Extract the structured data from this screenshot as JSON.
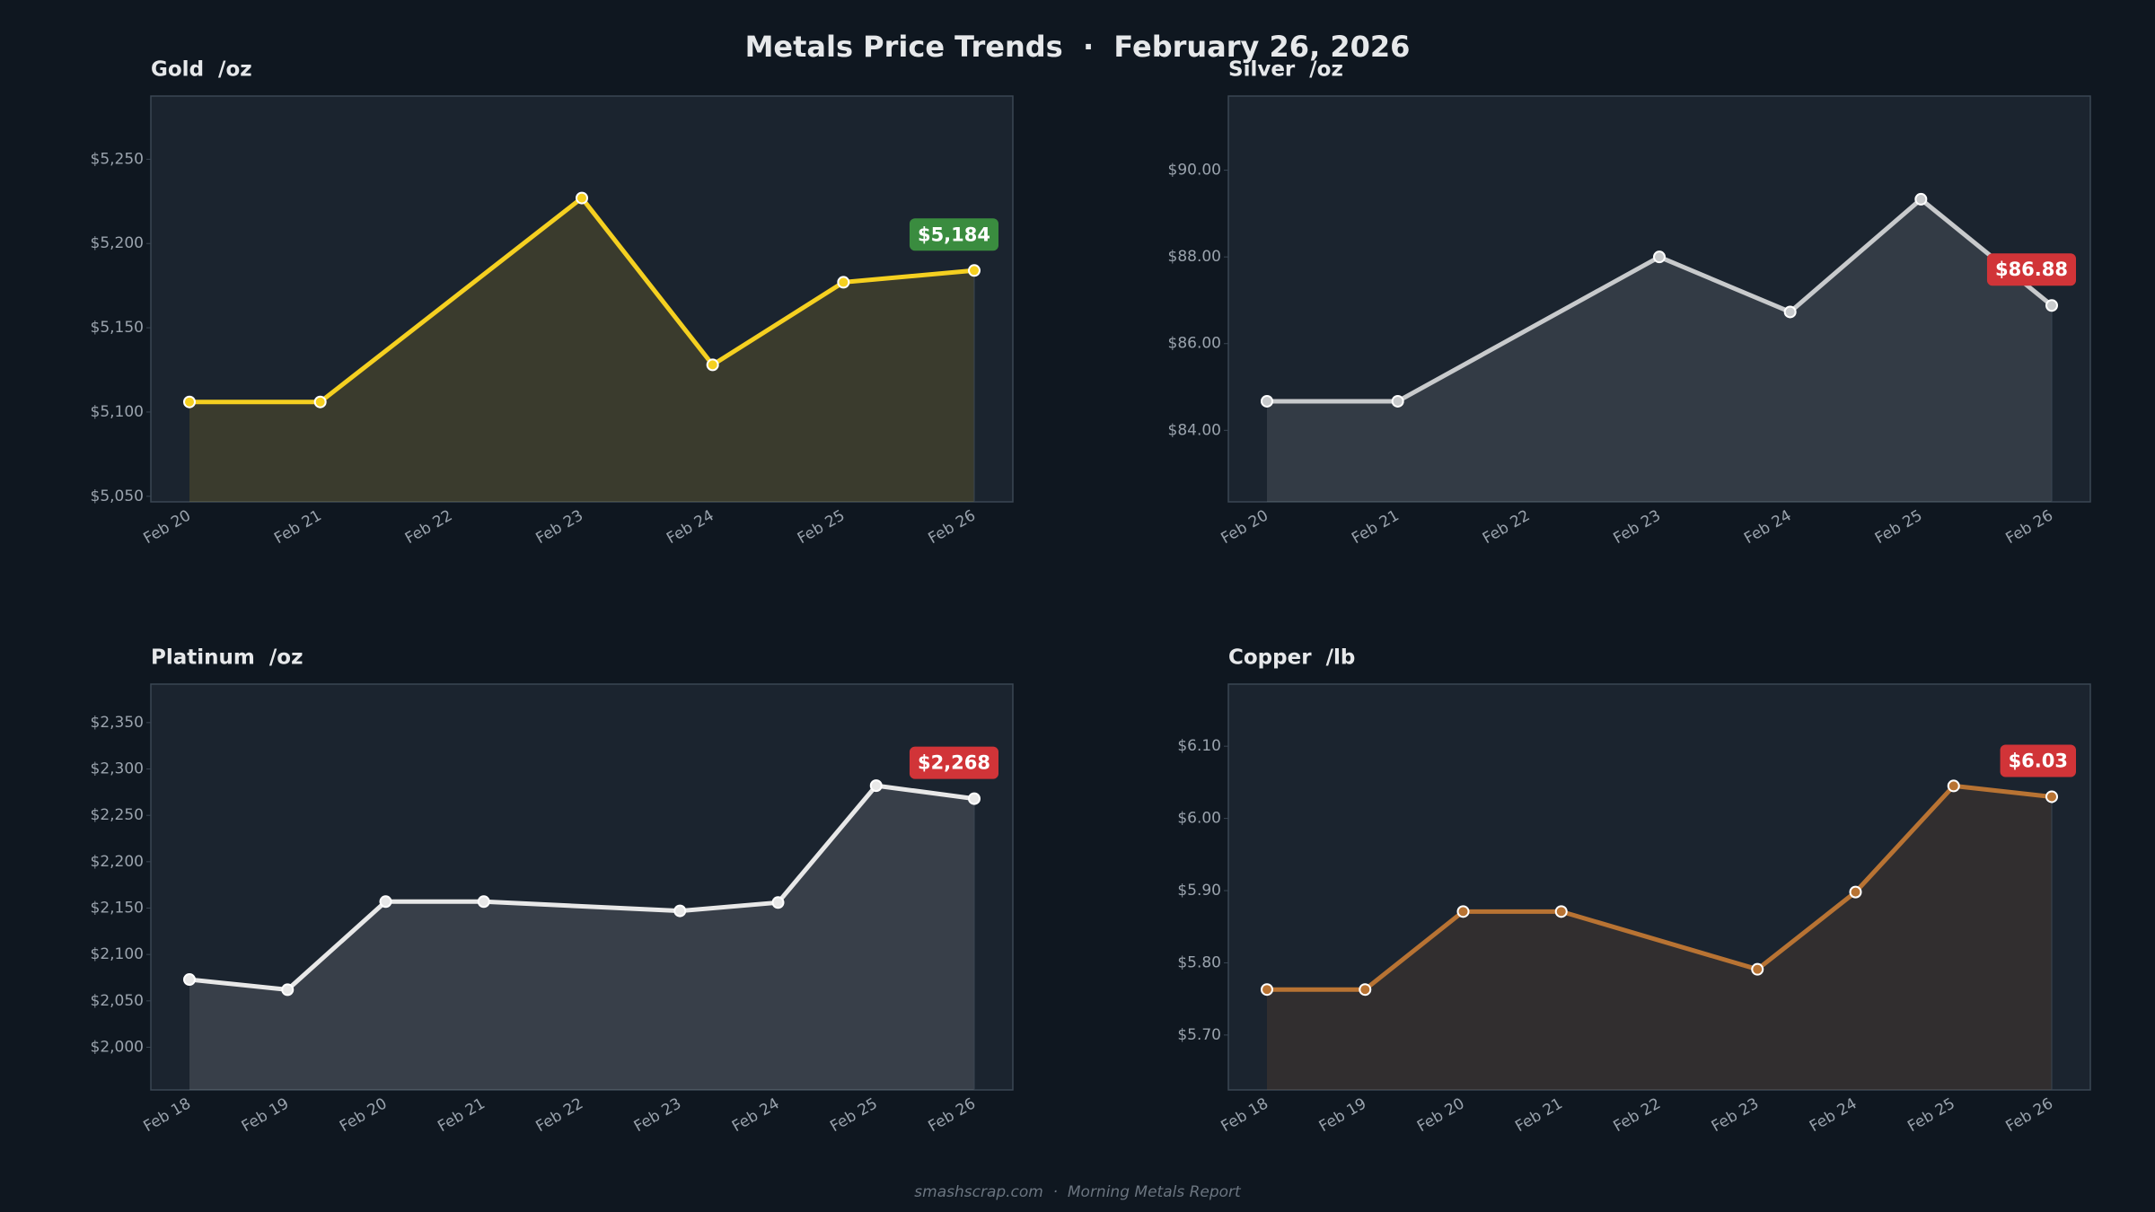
{
  "title": "Metals Price Trends  ·  February 26, 2026",
  "footer": "smashscrap.com  ·  Morning Metals Report",
  "chart_data": [
    {
      "type": "line",
      "title": "Gold  /oz",
      "xticks": [
        "Feb 20",
        "Feb 21",
        "Feb 22",
        "Feb 23",
        "Feb 24",
        "Feb 25",
        "Feb 26"
      ],
      "x": [
        "Feb 20",
        "Feb 21",
        "Feb 23",
        "Feb 24",
        "Feb 25",
        "Feb 26"
      ],
      "values": [
        5106,
        5106,
        5227,
        5128,
        5177,
        5184
      ],
      "value_labels": [
        null,
        null,
        null,
        null,
        null,
        "$5,184"
      ],
      "color": "#f5d020",
      "badge_color": "#3a8c3f",
      "ylim": [
        5046.7,
        5287.5
      ],
      "yticks": [
        {
          "value": 5050,
          "label": "$5,050"
        },
        {
          "value": 5100,
          "label": "$5,100"
        },
        {
          "value": 5150,
          "label": "$5,150"
        },
        {
          "value": 5200,
          "label": "$5,200"
        },
        {
          "value": 5250,
          "label": "$5,250"
        }
      ]
    },
    {
      "type": "line",
      "title": "Silver  /oz",
      "xticks": [
        "Feb 20",
        "Feb 21",
        "Feb 22",
        "Feb 23",
        "Feb 24",
        "Feb 25",
        "Feb 26"
      ],
      "x": [
        "Feb 20",
        "Feb 21",
        "Feb 23",
        "Feb 24",
        "Feb 25",
        "Feb 26"
      ],
      "values": [
        84.67,
        84.67,
        88.0,
        86.73,
        89.33,
        86.88
      ],
      "value_labels": [
        null,
        null,
        null,
        null,
        null,
        "$86.88"
      ],
      "color": "#c8cacc",
      "badge_color": "#d13438",
      "ylim": [
        82.35,
        91.71
      ],
      "yticks": [
        {
          "value": 84,
          "label": "$84.00"
        },
        {
          "value": 86,
          "label": "$86.00"
        },
        {
          "value": 88,
          "label": "$88.00"
        },
        {
          "value": 90,
          "label": "$90.00"
        }
      ]
    },
    {
      "type": "line",
      "title": "Platinum  /oz",
      "xticks": [
        "Feb 18",
        "Feb 19",
        "Feb 20",
        "Feb 21",
        "Feb 22",
        "Feb 23",
        "Feb 24",
        "Feb 25",
        "Feb 26"
      ],
      "x": [
        "Feb 18",
        "Feb 19",
        "Feb 20",
        "Feb 21",
        "Feb 23",
        "Feb 24",
        "Feb 25",
        "Feb 26"
      ],
      "values": [
        2073,
        2062,
        2157,
        2157,
        2147,
        2156,
        2282,
        2268
      ],
      "value_labels": [
        null,
        null,
        null,
        null,
        null,
        null,
        null,
        "$2,268"
      ],
      "color": "#e8e8e8",
      "badge_color": "#d13438",
      "ylim": [
        1954,
        2391.5
      ],
      "yticks": [
        {
          "value": 2000,
          "label": "$2,000"
        },
        {
          "value": 2050,
          "label": "$2,050"
        },
        {
          "value": 2100,
          "label": "$2,100"
        },
        {
          "value": 2150,
          "label": "$2,150"
        },
        {
          "value": 2200,
          "label": "$2,200"
        },
        {
          "value": 2250,
          "label": "$2,250"
        },
        {
          "value": 2300,
          "label": "$2,300"
        },
        {
          "value": 2350,
          "label": "$2,350"
        }
      ]
    },
    {
      "type": "line",
      "title": "Copper  /lb",
      "xticks": [
        "Feb 18",
        "Feb 19",
        "Feb 20",
        "Feb 21",
        "Feb 22",
        "Feb 23",
        "Feb 24",
        "Feb 25",
        "Feb 26"
      ],
      "x": [
        "Feb 18",
        "Feb 19",
        "Feb 20",
        "Feb 21",
        "Feb 23",
        "Feb 24",
        "Feb 25",
        "Feb 26"
      ],
      "values": [
        5.763,
        5.763,
        5.871,
        5.871,
        5.791,
        5.898,
        6.045,
        6.03
      ],
      "value_labels": [
        null,
        null,
        null,
        null,
        null,
        null,
        null,
        "$6.03"
      ],
      "color": "#b87333",
      "badge_color": "#d13438",
      "ylim": [
        5.624,
        6.186
      ],
      "yticks": [
        {
          "value": 5.7,
          "label": "$5.70"
        },
        {
          "value": 5.8,
          "label": "$5.80"
        },
        {
          "value": 5.9,
          "label": "$5.90"
        },
        {
          "value": 6.0,
          "label": "$6.00"
        },
        {
          "value": 6.1,
          "label": "$6.10"
        }
      ]
    }
  ]
}
